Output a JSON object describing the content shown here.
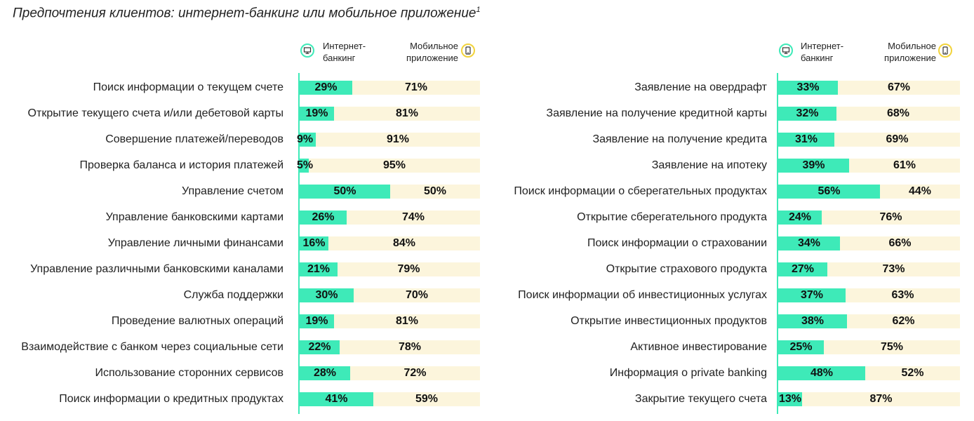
{
  "title": "Предпочтения клиентов: интернет-банкинг или мобильное приложение",
  "title_sup": "1",
  "legend": {
    "internet_line1": "Интернет-",
    "internet_line2": "банкинг",
    "mobile_line1": "Мобильное",
    "mobile_line2": "приложение"
  },
  "colors": {
    "internet": "#3EEAB8",
    "mobile": "#FCF5DC",
    "mobile_icon_ring": "#F2D33B",
    "internet_icon_ring": "#3EEAB8"
  },
  "icons": {
    "internet": "monitor-icon",
    "mobile": "smartphone-icon"
  },
  "chart_data": [
    {
      "type": "bar",
      "stacked": true,
      "orientation": "horizontal",
      "categories": [
        "Поиск информации о текущем счете",
        "Открытие текущего счета и/или дебетовой карты",
        "Совершение платежей/переводов",
        "Проверка баланса и история платежей",
        "Управление счетом",
        "Управление банковскими картами",
        "Управление личными финансами",
        "Управление различными банковскими каналами",
        "Служба поддержки",
        "Проведение валютных операций",
        "Взаимодействие с банком через социальные сети",
        "Использование сторонних сервисов",
        "Поиск информации о кредитных продуктах"
      ],
      "series": [
        {
          "name": "Интернет-банкинг",
          "values": [
            29,
            19,
            9,
            5,
            50,
            26,
            16,
            21,
            30,
            19,
            22,
            28,
            41
          ]
        },
        {
          "name": "Мобильное приложение",
          "values": [
            71,
            81,
            91,
            95,
            50,
            74,
            84,
            79,
            70,
            81,
            78,
            72,
            59
          ]
        }
      ],
      "unit": "%",
      "xlim": [
        0,
        100
      ]
    },
    {
      "type": "bar",
      "stacked": true,
      "orientation": "horizontal",
      "categories": [
        "Заявление на овердрафт",
        "Заявление на получение кредитной карты",
        "Заявление на получение кредита",
        "Заявление на ипотеку",
        "Поиск информации о сберегательных продуктах",
        "Открытие сберегательного продукта",
        "Поиск информации о страховании",
        "Открытие страхового продукта",
        "Поиск информации об инвестиционных услугах",
        "Открытие инвестиционных продуктов",
        "Активное инвестирование",
        "Информация о private banking",
        "Закрытие текущего счета"
      ],
      "series": [
        {
          "name": "Интернет-банкинг",
          "values": [
            33,
            32,
            31,
            39,
            56,
            24,
            34,
            27,
            37,
            38,
            25,
            48,
            13
          ]
        },
        {
          "name": "Мобильное приложение",
          "values": [
            67,
            68,
            69,
            61,
            44,
            76,
            66,
            73,
            63,
            62,
            75,
            52,
            87
          ]
        }
      ],
      "unit": "%",
      "xlim": [
        0,
        100
      ]
    }
  ]
}
